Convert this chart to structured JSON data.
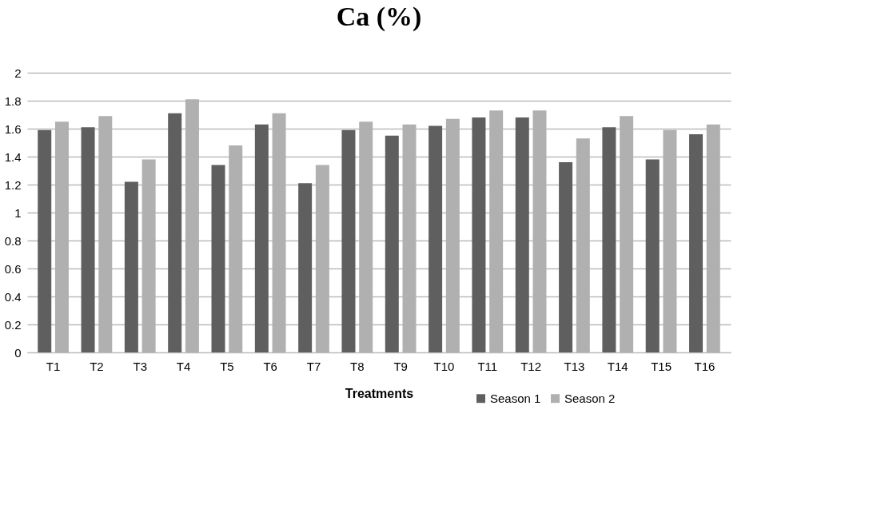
{
  "chart_data": {
    "type": "bar",
    "title": "Ca (%)",
    "xlabel": "Treatments",
    "categories": [
      "T1",
      "T2",
      "T3",
      "T4",
      "T5",
      "T6",
      "T7",
      "T8",
      "T9",
      "T10",
      "T11",
      "T12",
      "T13",
      "T14",
      "T15",
      "T16"
    ],
    "series": [
      {
        "name": "Season 1",
        "color": "#5f5f5f",
        "values": [
          1.59,
          1.61,
          1.22,
          1.71,
          1.34,
          1.63,
          1.21,
          1.59,
          1.55,
          1.62,
          1.68,
          1.68,
          1.36,
          1.61,
          1.38,
          1.56
        ]
      },
      {
        "name": "Season 2",
        "color": "#b0b0b0",
        "values": [
          1.65,
          1.69,
          1.38,
          1.81,
          1.48,
          1.71,
          1.34,
          1.65,
          1.63,
          1.67,
          1.73,
          1.73,
          1.53,
          1.69,
          1.59,
          1.63
        ]
      }
    ],
    "ylim": [
      0,
      2
    ],
    "yticks": [
      0,
      0.2,
      0.4,
      0.6,
      0.8,
      1,
      1.2,
      1.4,
      1.6,
      1.8,
      2
    ],
    "grid": "y",
    "legend": "bottom right"
  }
}
